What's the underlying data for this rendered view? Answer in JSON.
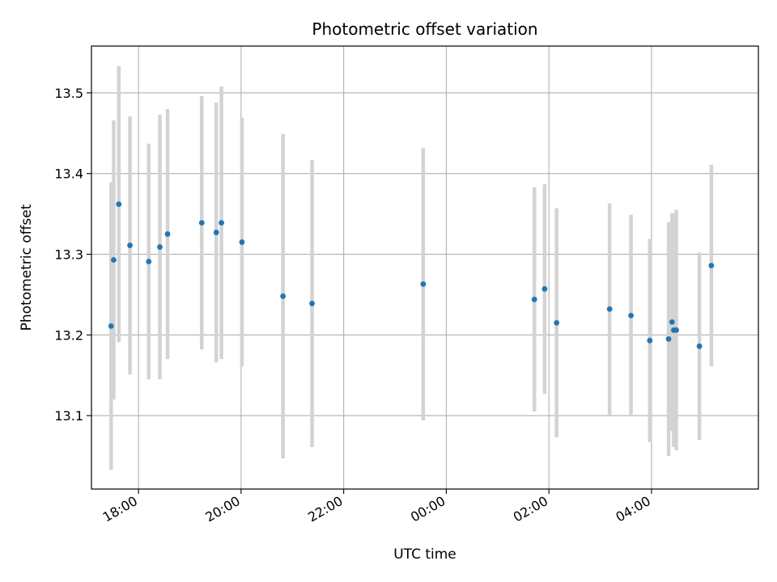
{
  "chart_data": {
    "type": "scatter",
    "title": "Photometric offset variation",
    "xlabel": "UTC time",
    "ylabel": "Photometric offset",
    "grid": true,
    "legend": "none",
    "x_ticks": [
      "18:00",
      "20:00",
      "22:00",
      "00:00",
      "02:00",
      "04:00"
    ],
    "y_ticks": [
      "13.1",
      "13.2",
      "13.3",
      "13.4",
      "13.5"
    ],
    "x_tick_values": [
      "18:00",
      "20:00",
      "22:00",
      "00:00",
      "02:00",
      "04:00"
    ],
    "y_tick_values": [
      13.1,
      13.2,
      13.3,
      13.4,
      13.5
    ],
    "xlim": [
      "17:05",
      "06:05"
    ],
    "ylim": [
      13.009,
      13.558
    ],
    "colors": {
      "point": "#1f77b4",
      "errorbar": "#d3d3d3",
      "grid": "#b0b0b0"
    },
    "series": [
      {
        "points": [
          {
            "x": "17:28",
            "y": 13.211,
            "yerr": 0.178
          },
          {
            "x": "17:31",
            "y": 13.293,
            "yerr": 0.173
          },
          {
            "x": "17:37",
            "y": 13.362,
            "yerr": 0.171
          },
          {
            "x": "17:50",
            "y": 13.311,
            "yerr": 0.16
          },
          {
            "x": "18:12",
            "y": 13.291,
            "yerr": 0.146
          },
          {
            "x": "18:25",
            "y": 13.309,
            "yerr": 0.164
          },
          {
            "x": "18:34",
            "y": 13.325,
            "yerr": 0.155
          },
          {
            "x": "19:14",
            "y": 13.339,
            "yerr": 0.157
          },
          {
            "x": "19:31",
            "y": 13.327,
            "yerr": 0.161
          },
          {
            "x": "19:37",
            "y": 13.339,
            "yerr": 0.169
          },
          {
            "x": "20:01",
            "y": 13.315,
            "yerr": 0.154
          },
          {
            "x": "20:49",
            "y": 13.248,
            "yerr": 0.201
          },
          {
            "x": "21:23",
            "y": 13.239,
            "yerr": 0.178
          },
          {
            "x": "23:33",
            "y": 13.263,
            "yerr": 0.169
          },
          {
            "x": "01:43",
            "y": 13.244,
            "yerr": 0.139
          },
          {
            "x": "01:55",
            "y": 13.257,
            "yerr": 0.13
          },
          {
            "x": "02:09",
            "y": 13.215,
            "yerr": 0.142
          },
          {
            "x": "03:11",
            "y": 13.232,
            "yerr": 0.131
          },
          {
            "x": "03:36",
            "y": 13.224,
            "yerr": 0.125
          },
          {
            "x": "03:58",
            "y": 13.193,
            "yerr": 0.126
          },
          {
            "x": "04:20",
            "y": 13.195,
            "yerr": 0.145
          },
          {
            "x": "04:24",
            "y": 13.216,
            "yerr": 0.135
          },
          {
            "x": "04:26",
            "y": 13.206,
            "yerr": 0.145
          },
          {
            "x": "04:29",
            "y": 13.206,
            "yerr": 0.149
          },
          {
            "x": "04:56",
            "y": 13.186,
            "yerr": 0.116
          },
          {
            "x": "05:10",
            "y": 13.286,
            "yerr": 0.125
          }
        ]
      }
    ]
  }
}
